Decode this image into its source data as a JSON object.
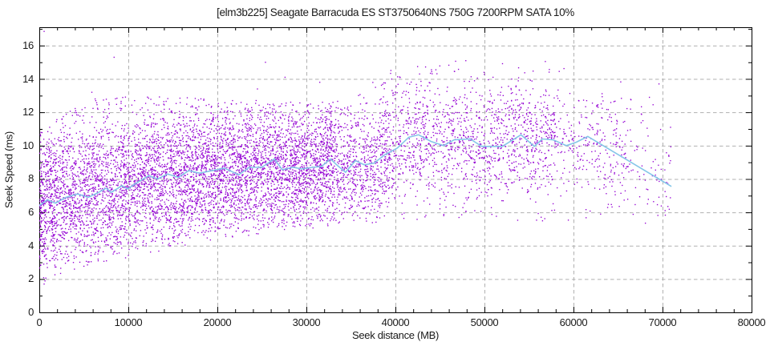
{
  "chart_data": {
    "type": "scatter",
    "title": "[elm3b225] Seagate Barracuda ES ST3750640NS 750G 7200RPM SATA 10%",
    "xlabel": "Seek distance (MB)",
    "ylabel": "Seek Speed (ms)",
    "xlim": [
      0,
      80000
    ],
    "ylim": [
      0,
      17.1
    ],
    "xticks": [
      0,
      10000,
      20000,
      30000,
      40000,
      50000,
      60000,
      70000,
      80000
    ],
    "yticks": [
      0,
      2,
      4,
      6,
      8,
      10,
      12,
      14,
      16
    ],
    "x_minor_step": 2000,
    "y_minor_step": 1,
    "grid": true,
    "legend": "none",
    "colors": {
      "background": "#ffffff",
      "points": "#9400d3",
      "line": "#85c6e8",
      "grid": "#b0b0b0",
      "axis": "#000000",
      "text": "#1a1a1a"
    },
    "series": [
      {
        "name": "seek-samples",
        "type": "scatter",
        "marker": "dot",
        "color": "#9400d3",
        "generator": {
          "seed": 1234,
          "regions": [
            [
              0,
              2000,
              480
            ],
            [
              2000,
              33000,
              5800
            ],
            [
              33000,
              40000,
              800
            ],
            [
              40000,
              58000,
              1350
            ],
            [
              58000,
              66000,
              280
            ],
            [
              66000,
              71000,
              80
            ]
          ],
          "envelope_lo": [
            [
              0,
              1.7
            ],
            [
              2000,
              2.1
            ],
            [
              4000,
              2.6
            ],
            [
              6000,
              2.9
            ],
            [
              10000,
              3.3
            ],
            [
              14000,
              3.7
            ],
            [
              18000,
              4.2
            ],
            [
              22000,
              4.5
            ],
            [
              26000,
              4.8
            ],
            [
              30000,
              5.0
            ],
            [
              34000,
              5.2
            ],
            [
              40000,
              5.5
            ],
            [
              50000,
              5.6
            ],
            [
              58000,
              5.4
            ],
            [
              64000,
              5.0
            ],
            [
              71000,
              5.4
            ]
          ],
          "envelope_hi": [
            [
              0,
              11.0
            ],
            [
              2000,
              11.6
            ],
            [
              4000,
              12.3
            ],
            [
              6000,
              12.8
            ],
            [
              10000,
              13.0
            ],
            [
              20000,
              12.85
            ],
            [
              30000,
              12.6
            ],
            [
              34000,
              12.7
            ],
            [
              36000,
              13.1
            ],
            [
              38000,
              14.1
            ],
            [
              40000,
              14.9
            ],
            [
              44000,
              15.1
            ],
            [
              52000,
              15.4
            ],
            [
              56000,
              15.3
            ],
            [
              58000,
              14.9
            ],
            [
              60000,
              14.6
            ],
            [
              62000,
              14.8
            ],
            [
              64000,
              14.1
            ],
            [
              66000,
              14.3
            ],
            [
              68000,
              12.6
            ],
            [
              70000,
              13.8
            ],
            [
              71000,
              10.6
            ]
          ],
          "half_spread": [
            [
              0,
              4.3
            ],
            [
              33000,
              3.9
            ],
            [
              40000,
              3.8
            ],
            [
              58000,
              3.4
            ],
            [
              71000,
              3.4
            ]
          ],
          "uniform_mix": 0.22
        },
        "outliers": [
          [
            540,
            16.85
          ],
          [
            540,
            1.7
          ],
          [
            5900,
            13.2
          ],
          [
            8400,
            15.3
          ],
          [
            10700,
            12.7
          ],
          [
            24500,
            13.4
          ],
          [
            25400,
            15.0
          ],
          [
            27600,
            14.1
          ],
          [
            31500,
            13.8
          ],
          [
            69600,
            13.7
          ],
          [
            70900,
            11.1
          ]
        ]
      },
      {
        "name": "moving-average",
        "type": "line",
        "color": "#85c6e8",
        "points": [
          [
            0,
            6.4
          ],
          [
            900,
            6.75
          ],
          [
            1800,
            6.55
          ],
          [
            3000,
            6.9
          ],
          [
            4300,
            7.1
          ],
          [
            5500,
            6.9
          ],
          [
            6500,
            7.15
          ],
          [
            7500,
            7.45
          ],
          [
            8100,
            7.2
          ],
          [
            9300,
            7.6
          ],
          [
            9900,
            7.4
          ],
          [
            11200,
            7.85
          ],
          [
            12300,
            8.2
          ],
          [
            13300,
            8.0
          ],
          [
            14400,
            8.3
          ],
          [
            15600,
            8.1
          ],
          [
            16800,
            8.5
          ],
          [
            18000,
            8.35
          ],
          [
            19400,
            8.5
          ],
          [
            20800,
            8.65
          ],
          [
            22400,
            8.25
          ],
          [
            23600,
            8.7
          ],
          [
            25000,
            8.7
          ],
          [
            26400,
            9.2
          ],
          [
            27300,
            8.55
          ],
          [
            28500,
            8.7
          ],
          [
            29500,
            8.6
          ],
          [
            30700,
            8.7
          ],
          [
            31700,
            8.75
          ],
          [
            32700,
            9.2
          ],
          [
            33500,
            8.8
          ],
          [
            34400,
            8.4
          ],
          [
            35500,
            9.1
          ],
          [
            36500,
            8.85
          ],
          [
            37600,
            8.95
          ],
          [
            38800,
            9.45
          ],
          [
            40200,
            9.85
          ],
          [
            41500,
            10.5
          ],
          [
            42600,
            10.65
          ],
          [
            44000,
            10.25
          ],
          [
            45400,
            10.0
          ],
          [
            46600,
            10.35
          ],
          [
            48400,
            10.4
          ],
          [
            49700,
            9.95
          ],
          [
            52000,
            9.95
          ],
          [
            54100,
            10.65
          ],
          [
            55600,
            9.95
          ],
          [
            56500,
            10.4
          ],
          [
            57700,
            10.35
          ],
          [
            59200,
            10.0
          ],
          [
            60300,
            10.2
          ],
          [
            61600,
            10.55
          ],
          [
            71000,
            7.55
          ]
        ]
      }
    ]
  }
}
